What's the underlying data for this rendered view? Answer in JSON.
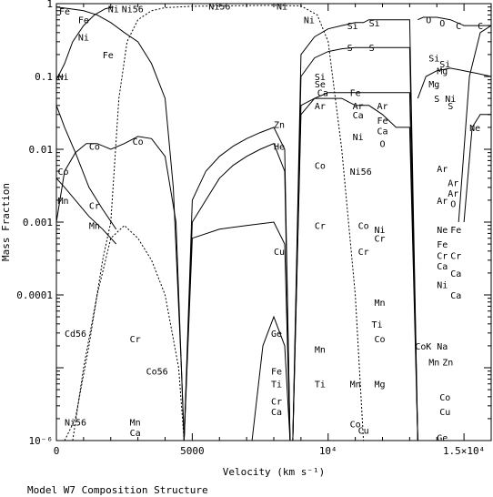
{
  "chart_data": {
    "type": "line",
    "title": "",
    "caption": "Model W7 Composition Structure",
    "xlabel": "Velocity (km s⁻¹)",
    "ylabel": "Mass Fraction",
    "xlim": [
      0,
      16000
    ],
    "ylim": [
      1e-06,
      1
    ],
    "yscale": "log",
    "grid": false,
    "x_ticks": [
      {
        "value": 0,
        "label": "0"
      },
      {
        "value": 5000,
        "label": "5000"
      },
      {
        "value": 10000,
        "label": "10⁴"
      },
      {
        "value": 15000,
        "label": "1.5×10⁴"
      }
    ],
    "y_ticks": [
      {
        "value": 1,
        "label": "1"
      },
      {
        "value": 0.1,
        "label": "0.1"
      },
      {
        "value": 0.01,
        "label": "0.01"
      },
      {
        "value": 0.001,
        "label": "0.001"
      },
      {
        "value": 0.0001,
        "label": "0.0001"
      },
      {
        "value": 1e-06,
        "label": "10⁻⁶"
      }
    ],
    "series": [
      {
        "name": "Fe",
        "style": "solid",
        "x": [
          0,
          500,
          1000,
          1500,
          2000,
          2500,
          3000,
          3500,
          4000,
          4300,
          4600,
          4700
        ],
        "y": [
          0.9,
          0.85,
          0.8,
          0.7,
          0.55,
          0.4,
          0.3,
          0.15,
          0.05,
          0.003,
          1e-05,
          1e-06
        ]
      },
      {
        "name": "Ni",
        "style": "solid",
        "x": [
          0,
          300,
          600,
          1000,
          1400,
          1800,
          2100
        ],
        "y": [
          0.09,
          0.15,
          0.3,
          0.5,
          0.7,
          0.85,
          0.9
        ]
      },
      {
        "name": "Ni56",
        "style": "dashed",
        "x": [
          2000,
          2300,
          2600,
          3000,
          3500,
          4000,
          5000,
          6000,
          7000,
          8000,
          9000,
          9600,
          10000,
          10500,
          11000,
          11300
        ],
        "y": [
          0.001,
          0.05,
          0.3,
          0.6,
          0.8,
          0.88,
          0.92,
          0.93,
          0.94,
          0.95,
          0.93,
          0.7,
          0.3,
          0.01,
          0.0001,
          1e-06
        ]
      },
      {
        "name": "Ni56",
        "style": "dashed",
        "x": [
          300,
          700,
          1200,
          1700,
          2000
        ],
        "y": [
          1e-06,
          2e-06,
          2e-05,
          0.0003,
          0.001
        ]
      },
      {
        "name": "Co56",
        "style": "dashed",
        "x": [
          600,
          1000,
          1500,
          2000,
          2500,
          3000,
          3500,
          4000,
          4500,
          4700
        ],
        "y": [
          1e-06,
          1e-05,
          0.0001,
          0.0006,
          0.0009,
          0.0006,
          0.0003,
          0.0001,
          1e-05,
          1e-06
        ]
      },
      {
        "name": "Si",
        "style": "solid",
        "x": [
          8700,
          9000,
          9500,
          10000,
          10500,
          11000,
          11300,
          11500,
          12000,
          12500,
          13000,
          13300
        ],
        "y": [
          1e-06,
          0.2,
          0.35,
          0.45,
          0.5,
          0.55,
          0.55,
          0.6,
          0.6,
          0.6,
          0.6,
          1e-06
        ]
      },
      {
        "name": "S",
        "style": "solid",
        "x": [
          8700,
          9000,
          9500,
          10000,
          10500,
          11000,
          11500,
          12000,
          12500,
          13000,
          13300
        ],
        "y": [
          1e-06,
          0.1,
          0.18,
          0.22,
          0.24,
          0.25,
          0.25,
          0.25,
          0.25,
          0.25,
          1e-06
        ]
      },
      {
        "name": "O",
        "style": "solid",
        "x": [
          13300,
          13500,
          14000,
          14500,
          15000,
          15500,
          16000
        ],
        "y": [
          0.6,
          0.65,
          0.65,
          0.6,
          0.5,
          0.5,
          0.5
        ]
      },
      {
        "name": "C",
        "style": "solid",
        "x": [
          14800,
          15200,
          15600,
          16000
        ],
        "y": [
          0.001,
          0.1,
          0.4,
          0.5
        ]
      },
      {
        "name": "Mg",
        "style": "solid",
        "x": [
          13300,
          13600,
          14000,
          14500,
          15000,
          15500,
          16000
        ],
        "y": [
          0.05,
          0.1,
          0.12,
          0.13,
          0.12,
          0.11,
          0.1
        ]
      },
      {
        "name": "Ne",
        "style": "solid",
        "x": [
          15000,
          15300,
          15600,
          16000
        ],
        "y": [
          0.001,
          0.02,
          0.03,
          0.03
        ]
      },
      {
        "name": "Co",
        "style": "solid",
        "x": [
          0,
          300,
          700,
          1100,
          1500,
          2000,
          2500,
          3000,
          3500,
          4000,
          4400,
          4700
        ],
        "y": [
          0.001,
          0.005,
          0.009,
          0.012,
          0.012,
          0.01,
          0.012,
          0.015,
          0.014,
          0.008,
          0.001,
          1e-06
        ]
      },
      {
        "name": "Cr",
        "style": "solid",
        "x": [
          0,
          300,
          700,
          1200,
          1700,
          2200
        ],
        "y": [
          0.04,
          0.02,
          0.009,
          0.003,
          0.0015,
          0.0008
        ]
      },
      {
        "name": "Mn",
        "style": "solid",
        "x": [
          0,
          300,
          700,
          1200,
          1700,
          2200
        ],
        "y": [
          0.004,
          0.003,
          0.002,
          0.0012,
          0.0008,
          0.0005
        ]
      },
      {
        "name": "Zn",
        "style": "solid",
        "x": [
          4700,
          5000,
          5500,
          6000,
          6500,
          7000,
          7500,
          8000,
          8400,
          8600
        ],
        "y": [
          1e-06,
          0.002,
          0.005,
          0.008,
          0.011,
          0.014,
          0.017,
          0.02,
          0.01,
          1e-06
        ]
      },
      {
        "name": "He",
        "style": "solid",
        "x": [
          4700,
          5000,
          5500,
          6000,
          6500,
          7000,
          7500,
          8000,
          8400,
          8600
        ],
        "y": [
          1e-06,
          0.001,
          0.002,
          0.004,
          0.006,
          0.008,
          0.01,
          0.012,
          0.005,
          1e-06
        ]
      },
      {
        "name": "Cu",
        "style": "solid",
        "x": [
          4700,
          5000,
          6000,
          7000,
          8000,
          8400,
          8600
        ],
        "y": [
          1e-06,
          0.0006,
          0.0008,
          0.0009,
          0.001,
          0.0005,
          1e-06
        ]
      },
      {
        "name": "Ge",
        "style": "solid",
        "x": [
          7200,
          7600,
          8000,
          8400,
          8600
        ],
        "y": [
          1e-06,
          2e-05,
          5e-05,
          2e-05,
          1e-06
        ]
      },
      {
        "name": "Ar",
        "style": "solid",
        "x": [
          8700,
          9000,
          9500,
          10000,
          10500,
          11000,
          11500,
          12000,
          12500,
          13000,
          13300
        ],
        "y": [
          1e-06,
          0.03,
          0.05,
          0.06,
          0.06,
          0.06,
          0.06,
          0.06,
          0.06,
          0.06,
          1e-06
        ]
      },
      {
        "name": "Ca",
        "style": "solid",
        "x": [
          8700,
          9000,
          9500,
          10000,
          10500,
          11000,
          11500,
          12000,
          12500,
          13000,
          13300
        ],
        "y": [
          1e-06,
          0.04,
          0.05,
          0.05,
          0.05,
          0.04,
          0.04,
          0.03,
          0.02,
          0.02,
          1e-06
        ]
      }
    ],
    "annotations": [
      {
        "text": "Fe",
        "x": 100,
        "y": 0.8
      },
      {
        "text": "Fe",
        "x": 800,
        "y": 0.6
      },
      {
        "text": "Ni",
        "x": 1900,
        "y": 0.85
      },
      {
        "text": "Ni56",
        "x": 2400,
        "y": 0.85
      },
      {
        "text": "Ni56",
        "x": 5600,
        "y": 0.93
      },
      {
        "text": "Ni",
        "x": 8100,
        "y": 0.93
      },
      {
        "text": "Ni",
        "x": 9100,
        "y": 0.6
      },
      {
        "text": "Ni",
        "x": 800,
        "y": 0.35
      },
      {
        "text": "Fe",
        "x": 1700,
        "y": 0.2
      },
      {
        "text": "Ni",
        "x": 50,
        "y": 0.1
      },
      {
        "text": "Si",
        "x": 10700,
        "y": 0.5
      },
      {
        "text": "Si",
        "x": 11500,
        "y": 0.55
      },
      {
        "text": "O",
        "x": 13600,
        "y": 0.6
      },
      {
        "text": "O",
        "x": 14100,
        "y": 0.55
      },
      {
        "text": "C",
        "x": 14700,
        "y": 0.5
      },
      {
        "text": "C",
        "x": 15500,
        "y": 0.5
      },
      {
        "text": "S",
        "x": 10700,
        "y": 0.25
      },
      {
        "text": "S",
        "x": 11500,
        "y": 0.25
      },
      {
        "text": "Si",
        "x": 13700,
        "y": 0.18
      },
      {
        "text": "Mg",
        "x": 14000,
        "y": 0.12
      },
      {
        "text": "Si",
        "x": 14100,
        "y": 0.15
      },
      {
        "text": "Mg",
        "x": 13700,
        "y": 0.08
      },
      {
        "text": "S",
        "x": 13900,
        "y": 0.05
      },
      {
        "text": "Ni",
        "x": 14300,
        "y": 0.05
      },
      {
        "text": "S",
        "x": 14400,
        "y": 0.04
      },
      {
        "text": "Ne",
        "x": 15200,
        "y": 0.02
      },
      {
        "text": "Si",
        "x": 9500,
        "y": 0.1
      },
      {
        "text": "Se",
        "x": 9500,
        "y": 0.08
      },
      {
        "text": "Ca",
        "x": 9600,
        "y": 0.06
      },
      {
        "text": "Ar",
        "x": 9500,
        "y": 0.04
      },
      {
        "text": "Fe",
        "x": 10800,
        "y": 0.06
      },
      {
        "text": "Ar",
        "x": 10900,
        "y": 0.04
      },
      {
        "text": "Ar",
        "x": 11800,
        "y": 0.04
      },
      {
        "text": "Ca",
        "x": 10900,
        "y": 0.03
      },
      {
        "text": "Fe",
        "x": 11800,
        "y": 0.025
      },
      {
        "text": "Ca",
        "x": 11800,
        "y": 0.018
      },
      {
        "text": "Ni",
        "x": 10900,
        "y": 0.015
      },
      {
        "text": "O",
        "x": 11900,
        "y": 0.012
      },
      {
        "text": "Zn",
        "x": 8000,
        "y": 0.022
      },
      {
        "text": "He",
        "x": 8000,
        "y": 0.011
      },
      {
        "text": "Co",
        "x": 1200,
        "y": 0.011
      },
      {
        "text": "Co",
        "x": 2800,
        "y": 0.013
      },
      {
        "text": "Co",
        "x": 50,
        "y": 0.005
      },
      {
        "text": "Co",
        "x": 9500,
        "y": 0.006
      },
      {
        "text": "Ni56",
        "x": 10800,
        "y": 0.005
      },
      {
        "text": "Mn",
        "x": 50,
        "y": 0.002
      },
      {
        "text": "Cr",
        "x": 1200,
        "y": 0.0017
      },
      {
        "text": "Mn",
        "x": 1200,
        "y": 0.0009
      },
      {
        "text": "Ar",
        "x": 14000,
        "y": 0.0055
      },
      {
        "text": "Ar",
        "x": 14400,
        "y": 0.0035
      },
      {
        "text": "Ar",
        "x": 14400,
        "y": 0.0025
      },
      {
        "text": "Ar",
        "x": 14000,
        "y": 0.002
      },
      {
        "text": "O",
        "x": 14500,
        "y": 0.0018
      },
      {
        "text": "Cr",
        "x": 9500,
        "y": 0.0009
      },
      {
        "text": "Co",
        "x": 11100,
        "y": 0.0009
      },
      {
        "text": "Ni",
        "x": 11700,
        "y": 0.0008
      },
      {
        "text": "Cr",
        "x": 11700,
        "y": 0.0006
      },
      {
        "text": "Cr",
        "x": 11100,
        "y": 0.0004
      },
      {
        "text": "Cu",
        "x": 8000,
        "y": 0.0004
      },
      {
        "text": "Ne",
        "x": 14000,
        "y": 0.0008
      },
      {
        "text": "Fe",
        "x": 14500,
        "y": 0.0008
      },
      {
        "text": "Fe",
        "x": 14000,
        "y": 0.0005
      },
      {
        "text": "Cr",
        "x": 14000,
        "y": 0.00035
      },
      {
        "text": "Cr",
        "x": 14500,
        "y": 0.00035
      },
      {
        "text": "Ca",
        "x": 14000,
        "y": 0.00025
      },
      {
        "text": "Ca",
        "x": 14500,
        "y": 0.0002
      },
      {
        "text": "Ni",
        "x": 14000,
        "y": 0.00014
      },
      {
        "text": "Ca",
        "x": 14500,
        "y": 0.0001
      },
      {
        "text": "Mn",
        "x": 11700,
        "y": 8e-05
      },
      {
        "text": "Ti",
        "x": 11600,
        "y": 4e-05
      },
      {
        "text": "Co",
        "x": 11700,
        "y": 2.5e-05
      },
      {
        "text": "Co",
        "x": 13200,
        "y": 2e-05
      },
      {
        "text": "K",
        "x": 13600,
        "y": 2e-05
      },
      {
        "text": "Na",
        "x": 14000,
        "y": 2e-05
      },
      {
        "text": "Mn",
        "x": 13700,
        "y": 1.2e-05
      },
      {
        "text": "Zn",
        "x": 14200,
        "y": 1.2e-05
      },
      {
        "text": "Cd56",
        "x": 300,
        "y": 3e-05
      },
      {
        "text": "Cr",
        "x": 2700,
        "y": 2.5e-05
      },
      {
        "text": "Co56",
        "x": 3300,
        "y": 9e-06
      },
      {
        "text": "Ge",
        "x": 7900,
        "y": 3e-05
      },
      {
        "text": "Mn",
        "x": 9500,
        "y": 1.8e-05
      },
      {
        "text": "Fe",
        "x": 7900,
        "y": 9e-06
      },
      {
        "text": "Ti",
        "x": 7900,
        "y": 6e-06
      },
      {
        "text": "Ti",
        "x": 9500,
        "y": 6e-06
      },
      {
        "text": "Mn",
        "x": 10800,
        "y": 6e-06
      },
      {
        "text": "Mg",
        "x": 11700,
        "y": 6e-06
      },
      {
        "text": "Cr",
        "x": 7900,
        "y": 3.5e-06
      },
      {
        "text": "Ca",
        "x": 7900,
        "y": 2.5e-06
      },
      {
        "text": "Co",
        "x": 14100,
        "y": 4e-06
      },
      {
        "text": "Cu",
        "x": 14100,
        "y": 2.5e-06
      },
      {
        "text": "Ni56",
        "x": 300,
        "y": 1.8e-06
      },
      {
        "text": "Mn",
        "x": 2700,
        "y": 1.8e-06
      },
      {
        "text": "Ca",
        "x": 2700,
        "y": 1.3e-06
      },
      {
        "text": "Co",
        "x": 10800,
        "y": 1.7e-06
      },
      {
        "text": "Cu",
        "x": 11100,
        "y": 1.4e-06
      },
      {
        "text": "Ge",
        "x": 14000,
        "y": 1.1e-06
      }
    ]
  }
}
